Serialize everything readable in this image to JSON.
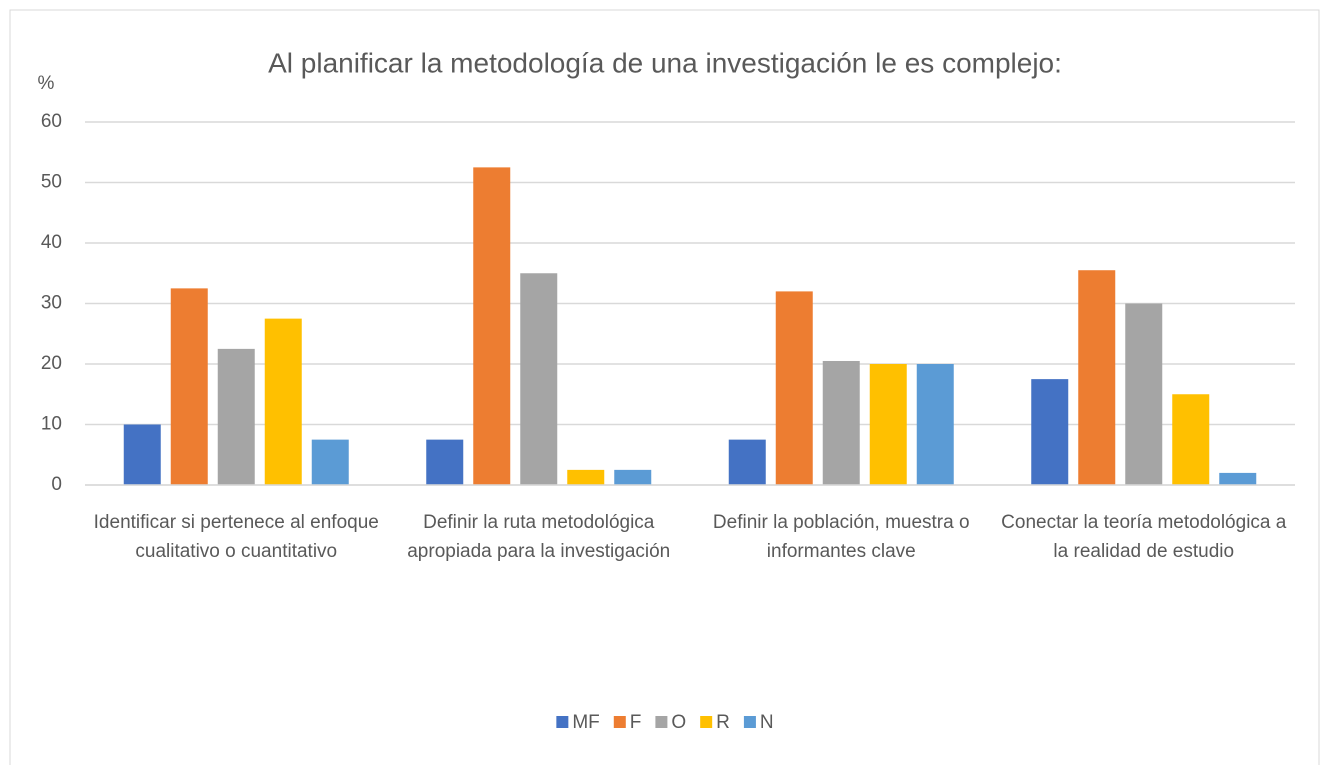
{
  "chart_data": {
    "type": "bar",
    "title": "Al planificar la metodología de una investigación le es complejo:",
    "y_label": "%",
    "categories": [
      "Identificar si pertenece al enfoque cualitativo o cuantitativo",
      "Definir la ruta metodológica apropiada para la investigación",
      "Definir la población, muestra o informantes clave",
      "Conectar la teoría metodológica a la realidad de estudio"
    ],
    "series": [
      {
        "name": "MF",
        "color": "#4472c4",
        "values": [
          10,
          7.5,
          7.5,
          17.5
        ]
      },
      {
        "name": "F",
        "color": "#ed7d31",
        "values": [
          32.5,
          52.5,
          32,
          35.5
        ]
      },
      {
        "name": "O",
        "color": "#a5a5a5",
        "values": [
          22.5,
          35,
          20.5,
          30
        ]
      },
      {
        "name": "R",
        "color": "#ffc000",
        "values": [
          27.5,
          2.5,
          20,
          15
        ]
      },
      {
        "name": "N",
        "color": "#5b9bd5",
        "values": [
          7.5,
          2.5,
          20,
          2
        ]
      }
    ],
    "ylim": [
      0,
      60
    ],
    "yticks": [
      0,
      10,
      20,
      30,
      40,
      50,
      60
    ],
    "grid": true,
    "legend": "bottom"
  }
}
